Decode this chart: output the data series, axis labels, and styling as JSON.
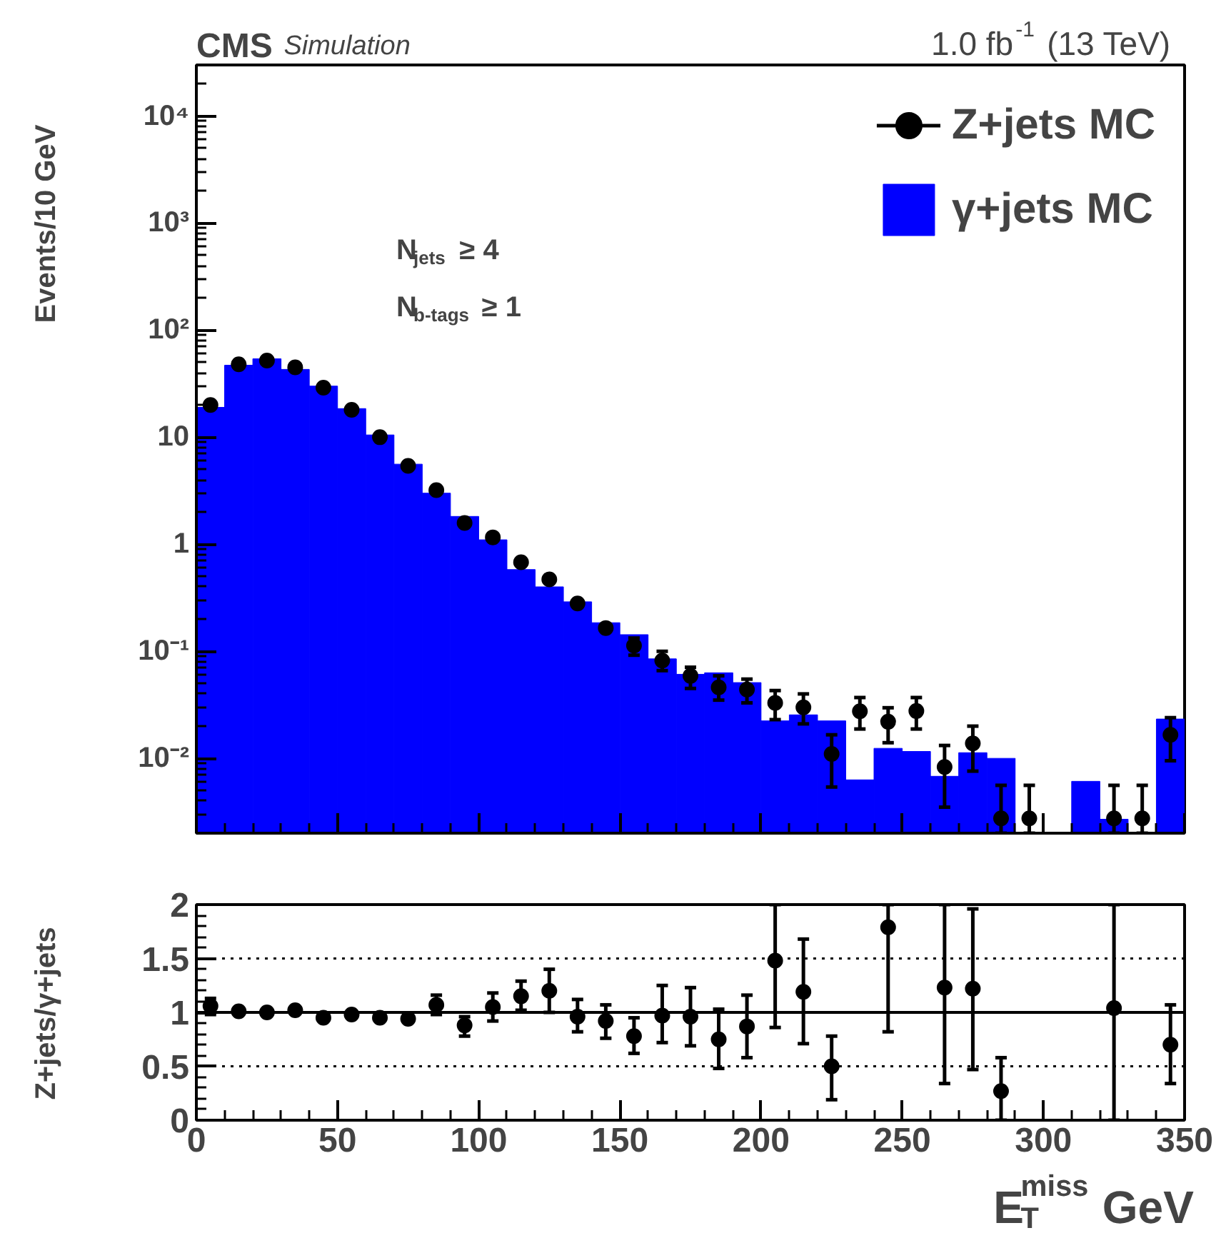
{
  "chart_data": [
    {
      "type": "histogram",
      "title": "CMS",
      "subtitle": "Simulation",
      "annotations": [
        "1.0 fb$^{-1}$ (13 TeV)",
        "N$_{jets}$ ≥ 4",
        "N$_{b-tags}$ ≥ 1"
      ],
      "ylabel": "Events/10 GeV",
      "bins": [
        0,
        10,
        20,
        30,
        40,
        50,
        60,
        70,
        80,
        90,
        100,
        110,
        120,
        130,
        140,
        150,
        160,
        170,
        180,
        190,
        200,
        210,
        220,
        230,
        240,
        250,
        260,
        270,
        280,
        290,
        300,
        310,
        320,
        330,
        340,
        350
      ],
      "series": [
        {
          "name": "Z+jets MC",
          "type": "scatter",
          "color": "#000000",
          "x": [
            5,
            15,
            25,
            35,
            45,
            55,
            65,
            75,
            85,
            95,
            105,
            115,
            125,
            135,
            145,
            155,
            165,
            175,
            185,
            195,
            205,
            215,
            225,
            235,
            245,
            255,
            265,
            275,
            285,
            295,
            305,
            315,
            325,
            335,
            345
          ],
          "values": [
            20,
            48,
            52,
            45,
            29,
            18,
            10,
            5.4,
            3.2,
            1.58,
            1.16,
            0.68,
            0.47,
            0.28,
            0.165,
            0.113,
            0.082,
            0.059,
            0.046,
            0.044,
            0.033,
            0.03,
            0.011,
            0.0275,
            0.022,
            0.0277,
            0.0083,
            0.0138,
            0.00275,
            0.00275,
            null,
            null,
            0.00275,
            0.00275,
            0.0166
          ],
          "errors": [
            null,
            null,
            null,
            null,
            null,
            null,
            null,
            null,
            null,
            null,
            null,
            null,
            null,
            null,
            [
              0.155,
              0.178
            ],
            [
              0.092,
              0.133
            ],
            [
              0.066,
              0.1
            ],
            [
              0.045,
              0.071
            ],
            [
              0.035,
              0.059
            ],
            [
              0.033,
              0.055
            ],
            [
              0.023,
              0.043
            ],
            [
              0.021,
              0.04
            ],
            [
              0.0054,
              0.0166
            ],
            [
              0.0188,
              0.037
            ],
            [
              0.014,
              0.0297
            ],
            [
              0.0188,
              0.037
            ],
            [
              0.0035,
              0.0132
            ],
            [
              0.0076,
              0.02
            ],
            [
              0.002,
              0.0056
            ],
            [
              0.002,
              0.0056
            ],
            null,
            null,
            [
              0.002,
              0.0056
            ],
            [
              0.002,
              0.0056
            ],
            [
              0.0095,
              0.024
            ]
          ]
        },
        {
          "name": "γ+jets MC",
          "type": "histogram",
          "color": "#0000ff",
          "values": [
            19,
            47,
            54,
            43,
            30,
            18.5,
            10.5,
            5.6,
            3.0,
            1.82,
            1.1,
            0.58,
            0.4,
            0.29,
            0.185,
            0.143,
            0.085,
            0.061,
            0.063,
            0.051,
            0.0224,
            0.0255,
            0.0224,
            0.0063,
            0.0124,
            0.0116,
            0.0068,
            0.0113,
            0.01,
            null,
            null,
            0.0061,
            0.0027,
            null,
            0.0233
          ]
        }
      ],
      "marker": "circle",
      "log": true,
      "xlim": [
        0,
        350
      ],
      "ylim": [
        0.002,
        30000
      ],
      "xticks": [
        0,
        50,
        100,
        150,
        200,
        250,
        300,
        350
      ],
      "yticks": [
        {
          "value": 0.01,
          "label": "10⁻²"
        },
        {
          "value": 0.1,
          "label": "10⁻¹"
        },
        1,
        10,
        {
          "value": 100,
          "label": "10²"
        },
        {
          "value": 1000,
          "label": "10³"
        },
        {
          "value": 10000,
          "label": "10⁴"
        }
      ],
      "tick_labels": "y",
      "legend": "top right"
    },
    {
      "type": "scatter",
      "xlabel": "E$_{T}$$^{miss}$ GeV",
      "ylabel": "Z+jets/γ+jets",
      "x": [
        5,
        15,
        25,
        35,
        45,
        55,
        65,
        75,
        85,
        95,
        105,
        115,
        125,
        135,
        145,
        155,
        165,
        175,
        185,
        195,
        205,
        215,
        225,
        235,
        245,
        255,
        265,
        275,
        285,
        295,
        305,
        315,
        325,
        335,
        345
      ],
      "values": [
        1.06,
        1.01,
        1.0,
        1.02,
        0.95,
        0.98,
        0.95,
        0.94,
        1.07,
        0.88,
        1.05,
        1.15,
        1.2,
        0.96,
        0.92,
        0.78,
        0.97,
        0.96,
        0.75,
        0.87,
        1.48,
        1.19,
        0.5,
        null,
        1.79,
        null,
        1.23,
        1.22,
        0.27,
        null,
        null,
        null,
        1.04,
        null,
        0.7
      ],
      "errors": [
        [
          0.98,
          1.13
        ],
        null,
        null,
        null,
        null,
        null,
        null,
        null,
        [
          0.98,
          1.16
        ],
        [
          0.78,
          0.96
        ],
        [
          0.92,
          1.18
        ],
        [
          1.02,
          1.29
        ],
        [
          1.0,
          1.4
        ],
        [
          0.82,
          1.12
        ],
        [
          0.76,
          1.07
        ],
        [
          0.62,
          0.95
        ],
        [
          0.72,
          1.25
        ],
        [
          0.69,
          1.23
        ],
        [
          0.48,
          1.03
        ],
        [
          0.58,
          1.16
        ],
        [
          0.86,
          2.0
        ],
        [
          0.71,
          1.68
        ],
        [
          0.19,
          0.78
        ],
        null,
        [
          0.82,
          2.0
        ],
        null,
        [
          0.34,
          2.0
        ],
        [
          0.47,
          1.96
        ],
        [
          0,
          0.58
        ],
        null,
        null,
        null,
        [
          0,
          2.0
        ],
        null,
        [
          0.34,
          1.07
        ]
      ],
      "color": "#000000",
      "marker": "circle",
      "xlim": [
        0,
        350
      ],
      "ylim": [
        0,
        2
      ],
      "xticks": [
        0,
        50,
        100,
        150,
        200,
        250,
        300,
        350
      ],
      "yticks": [
        0,
        0.5,
        1,
        1.5,
        2
      ],
      "ref_lines": [
        {
          "axis": "y",
          "value": 1,
          "line_style": "solid"
        },
        {
          "axis": "y",
          "value": 0.5,
          "line_style": "dotted"
        },
        {
          "axis": "y",
          "value": 1.5,
          "line_style": "dotted"
        }
      ]
    }
  ]
}
